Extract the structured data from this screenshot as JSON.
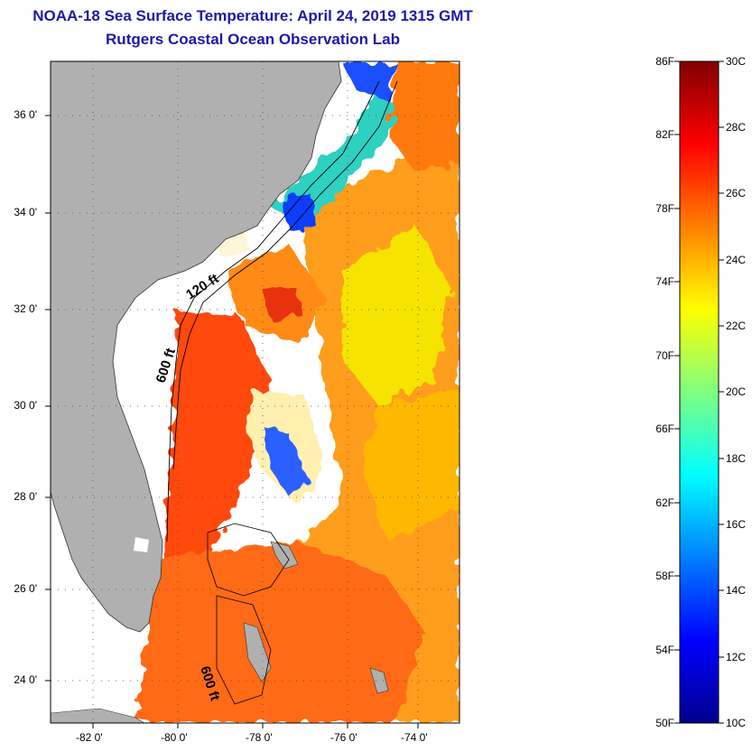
{
  "title": {
    "line1": "NOAA-18 Sea Surface Temperature:  April 24, 2019 1315 GMT",
    "line2": "Rutgers Coastal Ocean Observation Lab"
  },
  "map": {
    "lat_labels": [
      "36 0'",
      "34 0'",
      "32 0'",
      "30 0'",
      "28 0'",
      "26 0'",
      "24 0'"
    ],
    "lon_labels": [
      "-82 0'",
      "-80 0'",
      "-78 0'",
      "-76 0'",
      "-74 0'"
    ],
    "contour_labels": [
      "120 ft",
      "600 ft",
      "600 ft"
    ],
    "colors": {
      "land": "#b0b0b0",
      "cloud": "#ffffff",
      "frame": "#000000"
    }
  },
  "colorbar": {
    "f_labels": [
      "86F",
      "82F",
      "78F",
      "74F",
      "70F",
      "66F",
      "62F",
      "58F",
      "54F",
      "50F"
    ],
    "c_labels": [
      "30C",
      "28C",
      "26C",
      "24C",
      "22C",
      "20C",
      "18C",
      "16C",
      "14C",
      "12C",
      "10C"
    ],
    "min_c": 10,
    "max_c": 30
  }
}
